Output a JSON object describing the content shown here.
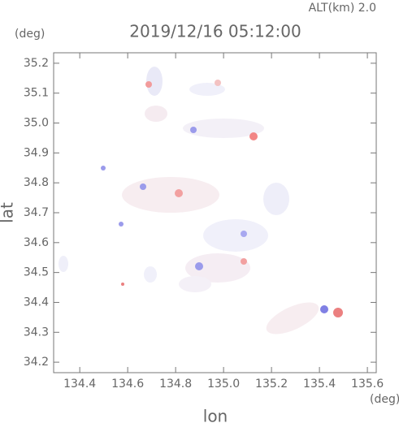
{
  "chart_data": {
    "type": "map",
    "title": "2019/12/16 05:12:00",
    "altitude_label": "ALT(km) 2.0",
    "y_unit": "(deg)",
    "x_unit": "(deg)",
    "x_label": "lon",
    "y_label": "lat",
    "xlim": [
      134.291,
      135.637
    ],
    "ylim": [
      34.165,
      35.235
    ],
    "xticks": [
      134.4,
      134.6,
      134.8,
      {
        "value": 135,
        "label": "135.0"
      },
      135.2,
      135.4,
      135.6
    ],
    "yticks": [
      34.2,
      34.3,
      34.4,
      34.5,
      34.6,
      34.7,
      34.8,
      34.9,
      {
        "value": 35,
        "label": "35.0"
      },
      35.1,
      35.2
    ]
  }
}
